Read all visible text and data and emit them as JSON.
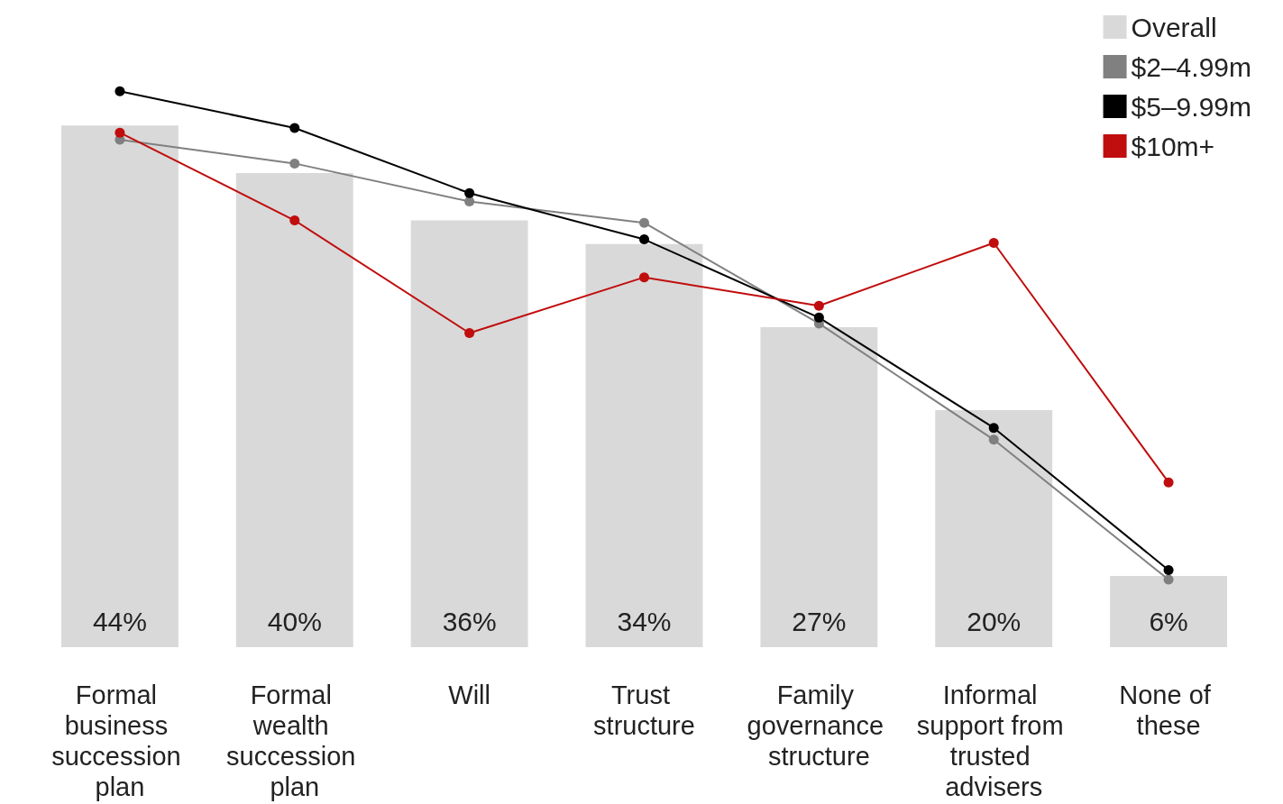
{
  "chart_data": {
    "type": "bar",
    "categories": [
      "Formal business succession plan",
      "Formal wealth succession plan",
      "Will",
      "Trust structure",
      "Family governance structure",
      "Informal support from trusted advisers",
      "None of these"
    ],
    "series": [
      {
        "name": "Overall",
        "color": "#d9d9d9",
        "values": [
          44,
          40,
          36,
          34,
          27,
          20,
          6
        ],
        "value_labels": [
          "44%",
          "40%",
          "36%",
          "34%",
          "27%",
          "20%",
          "6%"
        ]
      },
      {
        "name": "$2–4.99m",
        "type": "line",
        "color": "#808080",
        "values": [
          42.8,
          40.8,
          37.6,
          35.8,
          27.3,
          17.5,
          5.7
        ]
      },
      {
        "name": "$5–9.99m",
        "type": "line",
        "color": "#000000",
        "values": [
          46.9,
          43.8,
          38.3,
          34.4,
          27.8,
          18.5,
          6.5
        ]
      },
      {
        "name": "$10m+",
        "type": "line",
        "color": "#c00d0d",
        "values": [
          43.4,
          36.0,
          26.5,
          31.2,
          28.8,
          34.1,
          13.9
        ]
      }
    ],
    "legend": "top right",
    "marker": "circle",
    "line_style": "solid",
    "tick_labels": "x"
  }
}
